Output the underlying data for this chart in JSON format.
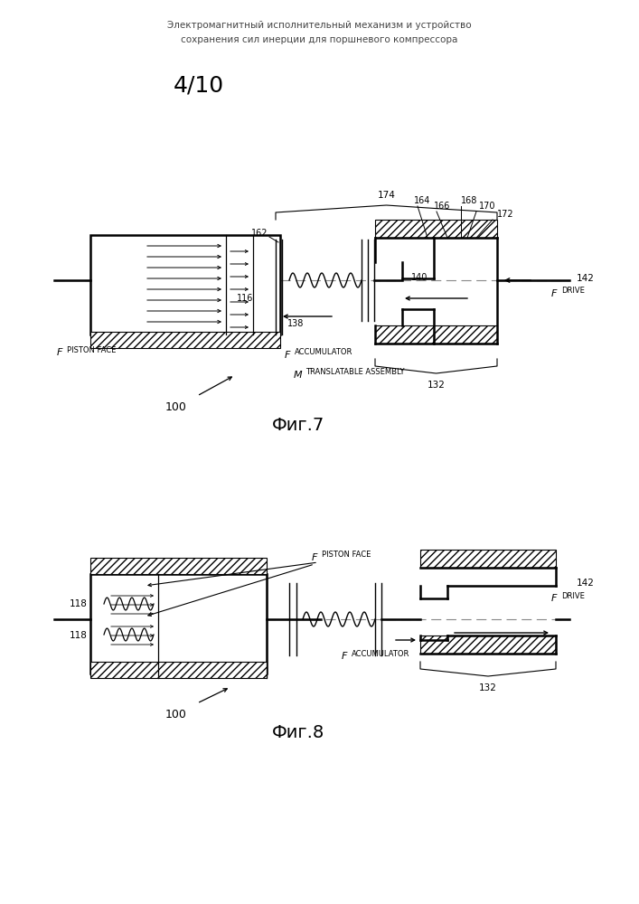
{
  "title_ru": "Электромагнитный исполнительный механизм и устройство\nсохранения сил инерции для поршневого компрессора",
  "page_label": "4/10",
  "fig7_label": "Фиг.7",
  "fig8_label": "Фиг.8",
  "bg_color": "#ffffff",
  "lc": "#000000"
}
